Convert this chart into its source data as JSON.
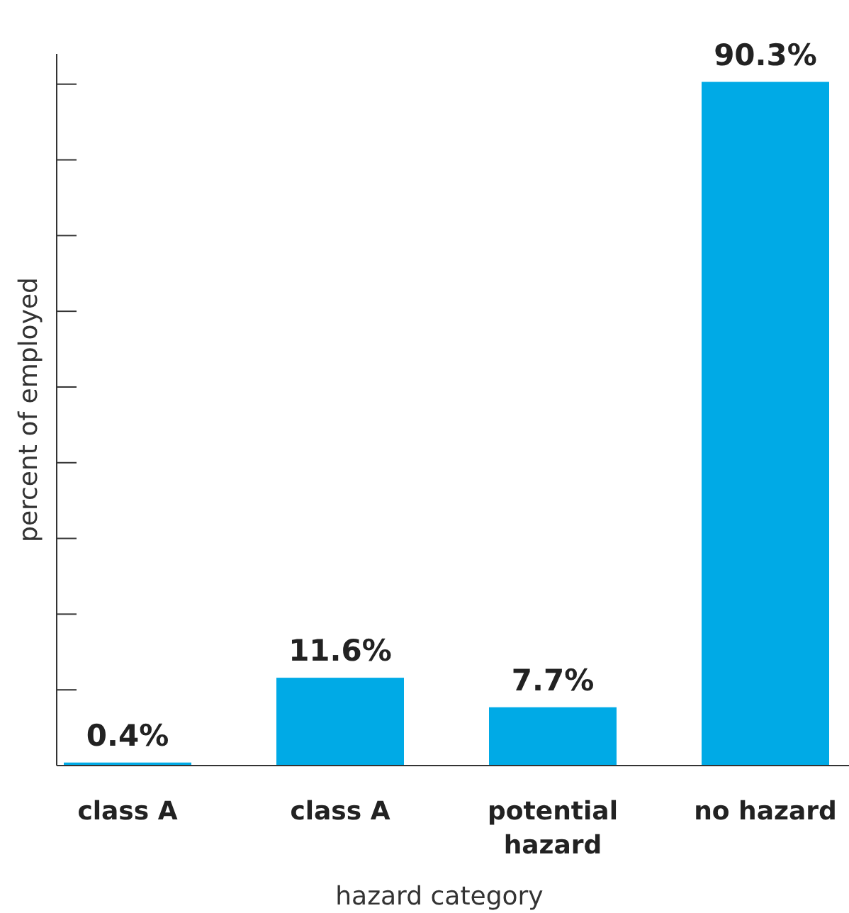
{
  "chart_data": {
    "type": "bar",
    "xlabel": "hazard category",
    "ylabel": "percent of employed",
    "categories": [
      "class A",
      "class A",
      "potential hazard",
      "no hazard"
    ],
    "values": [
      0.4,
      11.6,
      7.7,
      90.3
    ],
    "value_labels": [
      "0.4%",
      "11.6%",
      "7.7%",
      "90.3%"
    ],
    "color": "#00aae6",
    "ylim": [
      0,
      94
    ],
    "yticks": [
      {
        "value": 0,
        "label": null
      },
      {
        "value": 10,
        "label": null
      },
      {
        "value": 20,
        "label": null
      },
      {
        "value": 30,
        "label": null
      },
      {
        "value": 40,
        "label": null
      },
      {
        "value": 50,
        "label": null
      },
      {
        "value": 60,
        "label": null
      },
      {
        "value": 70,
        "label": null
      },
      {
        "value": 80,
        "label": null
      },
      {
        "value": 90,
        "label": null
      }
    ],
    "grid": false
  }
}
